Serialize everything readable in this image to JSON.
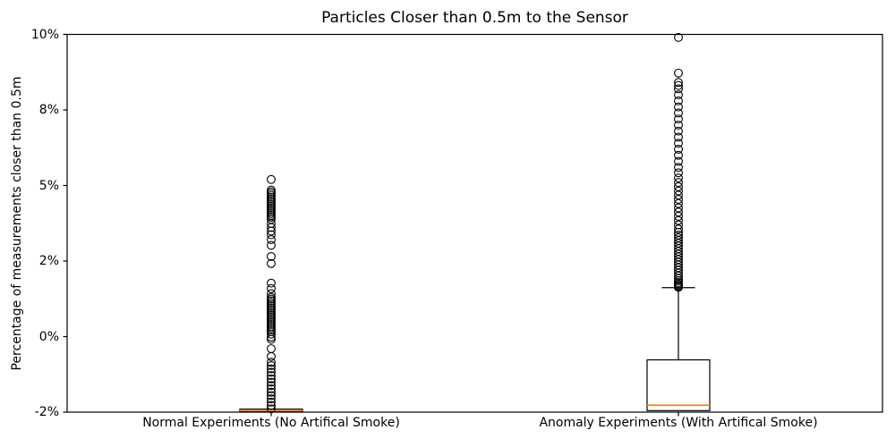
{
  "chart_data": {
    "type": "boxplot",
    "title": "Particles Closer than 0.5m to the Sensor",
    "ylabel": "Percentage of measurements closer than 0.5m",
    "xlabel": "",
    "ylim": [
      -2.5,
      10
    ],
    "grid": false,
    "legend": "none",
    "yticks": [
      {
        "value": -2.5,
        "label": "-2%"
      },
      {
        "value": 0,
        "label": "0%"
      },
      {
        "value": 2.5,
        "label": "2%"
      },
      {
        "value": 5,
        "label": "5%"
      },
      {
        "value": 7.5,
        "label": "8%"
      },
      {
        "value": 10,
        "label": "10%"
      }
    ],
    "categories": [
      "Normal Experiments (No Artifical Smoke)",
      "Anomaly Experiments (With Artifical Smoke)"
    ],
    "colors": {
      "box": "#000000",
      "median": "#ff7f0e",
      "outlier": "#000000",
      "axis": "#000000",
      "background": "#ffffff"
    },
    "series": [
      {
        "name": "Normal Experiments (No Artifical Smoke)",
        "q1": -2.49,
        "median": -2.44,
        "q3": -2.4,
        "whisker_low": -2.49,
        "whisker_high": -2.4,
        "outliers": [
          5.2,
          4.85,
          4.79,
          4.73,
          4.67,
          4.61,
          4.55,
          4.49,
          4.43,
          4.37,
          4.31,
          4.25,
          4.19,
          4.13,
          4.07,
          4.01,
          3.95,
          3.88,
          3.74,
          3.61,
          3.49,
          3.37,
          3.21,
          3.02,
          2.65,
          2.42,
          1.77,
          1.59,
          1.42,
          1.3,
          1.24,
          1.18,
          1.12,
          1.06,
          1.0,
          0.94,
          0.88,
          0.82,
          0.76,
          0.7,
          0.64,
          0.58,
          0.52,
          0.46,
          0.4,
          0.34,
          0.28,
          0.22,
          0.16,
          0.08,
          -0.02,
          -0.09,
          -0.4,
          -0.66,
          -0.85,
          -0.96,
          -1.07,
          -1.18,
          -1.29,
          -1.4,
          -1.51,
          -1.62,
          -1.73,
          -1.84,
          -1.95,
          -2.06,
          -2.17,
          -2.28,
          -2.39
        ]
      },
      {
        "name": "Anomaly Experiments (With Artifical Smoke)",
        "q1": -2.45,
        "median": -2.27,
        "q3": -0.77,
        "whisker_low": -2.45,
        "whisker_high": 1.62,
        "outliers": [
          9.9,
          8.72,
          8.41,
          8.31,
          8.2,
          8.0,
          7.8,
          7.6,
          7.4,
          7.2,
          7.0,
          6.8,
          6.6,
          6.4,
          6.2,
          6.0,
          5.8,
          5.6,
          5.42,
          5.25,
          5.1,
          4.96,
          4.82,
          4.68,
          4.54,
          4.4,
          4.26,
          4.12,
          3.98,
          3.84,
          3.7,
          3.56,
          3.45,
          3.36,
          3.27,
          3.18,
          3.09,
          3.0,
          2.91,
          2.82,
          2.73,
          2.64,
          2.55,
          2.46,
          2.37,
          2.28,
          2.19,
          2.1,
          2.01,
          1.92,
          1.85,
          1.79,
          1.74,
          1.7,
          1.66,
          1.63
        ]
      }
    ]
  }
}
